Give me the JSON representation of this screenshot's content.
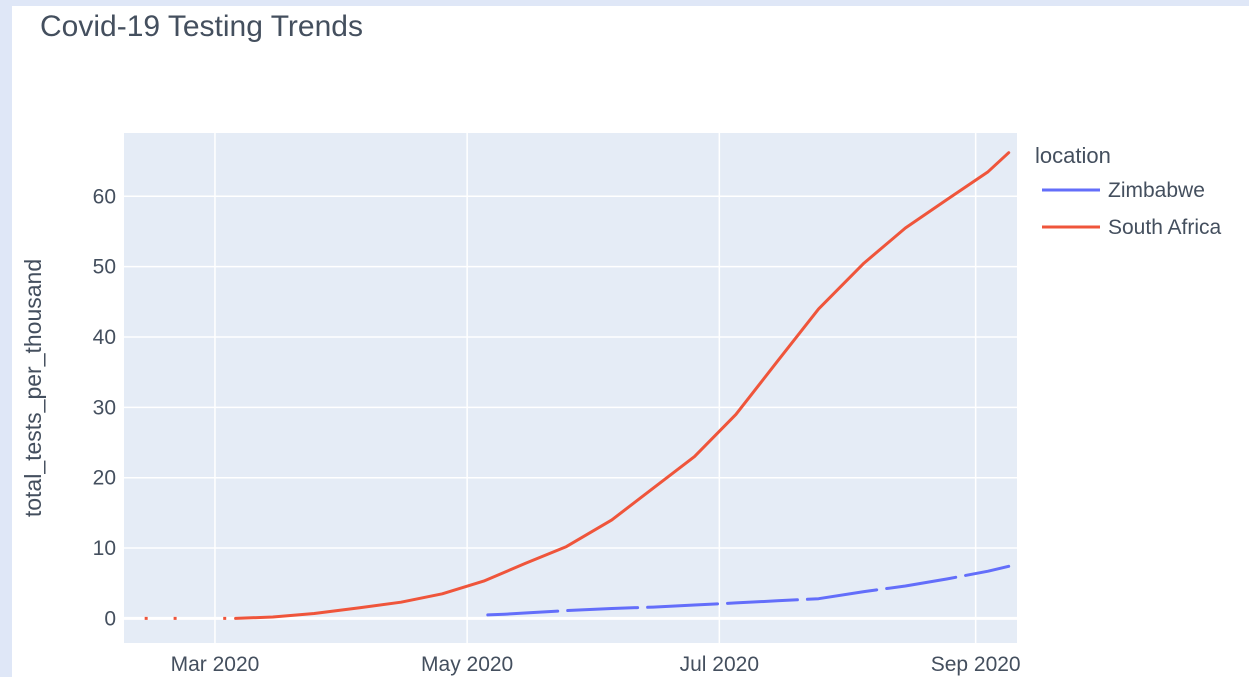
{
  "chart_data": {
    "type": "line",
    "title": "Covid-19 Testing Trends",
    "xlabel": "",
    "ylabel": "total_tests_per_thousand",
    "x_type": "date",
    "xlim": [
      "2020-02-08",
      "2020-09-11"
    ],
    "ylim": [
      -3.5,
      69
    ],
    "x_ticks": [
      {
        "date": "2020-03-01",
        "label": "Mar 2020"
      },
      {
        "date": "2020-05-01",
        "label": "May 2020"
      },
      {
        "date": "2020-07-01",
        "label": "Jul 2020"
      },
      {
        "date": "2020-09-01",
        "label": "Sep 2020"
      }
    ],
    "y_ticks": [
      0,
      10,
      20,
      30,
      40,
      50,
      60
    ],
    "grid": true,
    "legend": {
      "title": "location",
      "position": "right"
    },
    "series": [
      {
        "name": "Zimbabwe",
        "color": "#636efa",
        "points": [
          [
            "2020-05-06",
            0.5
          ],
          [
            "2020-05-10",
            0.6
          ],
          [
            "2020-05-16",
            0.8
          ],
          [
            "2020-05-25",
            1.1
          ],
          [
            "2020-06-05",
            1.4
          ],
          [
            "2020-06-15",
            1.6
          ],
          [
            "2020-06-25",
            1.9
          ],
          [
            "2020-07-05",
            2.2
          ],
          [
            "2020-07-15",
            2.5
          ],
          [
            "2020-07-25",
            2.8
          ],
          [
            "2020-08-05",
            3.8
          ],
          [
            "2020-08-15",
            4.6
          ],
          [
            "2020-08-25",
            5.6
          ],
          [
            "2020-09-04",
            6.7
          ],
          [
            "2020-09-09",
            7.4
          ]
        ]
      },
      {
        "name": "South Africa",
        "color": "#ef553b",
        "points": [
          [
            "2020-03-06",
            0.0
          ],
          [
            "2020-03-15",
            0.2
          ],
          [
            "2020-03-25",
            0.7
          ],
          [
            "2020-04-05",
            1.5
          ],
          [
            "2020-04-15",
            2.3
          ],
          [
            "2020-04-25",
            3.5
          ],
          [
            "2020-05-05",
            5.3
          ],
          [
            "2020-05-15",
            7.8
          ],
          [
            "2020-05-25",
            10.2
          ],
          [
            "2020-06-05",
            14.0
          ],
          [
            "2020-06-15",
            18.5
          ],
          [
            "2020-06-25",
            23.0
          ],
          [
            "2020-07-05",
            29.0
          ],
          [
            "2020-07-15",
            36.5
          ],
          [
            "2020-07-25",
            44.0
          ],
          [
            "2020-08-05",
            50.5
          ],
          [
            "2020-08-15",
            55.5
          ],
          [
            "2020-08-25",
            59.5
          ],
          [
            "2020-09-04",
            63.5
          ],
          [
            "2020-09-09",
            66.2
          ]
        ],
        "early_points": [
          [
            "2020-02-13",
            0.0
          ],
          [
            "2020-02-15",
            0.0
          ],
          [
            "2020-02-20",
            0.0
          ],
          [
            "2020-02-22",
            0.0
          ],
          [
            "2020-03-03",
            0.0
          ],
          [
            "2020-03-05",
            0.0
          ]
        ]
      }
    ]
  }
}
